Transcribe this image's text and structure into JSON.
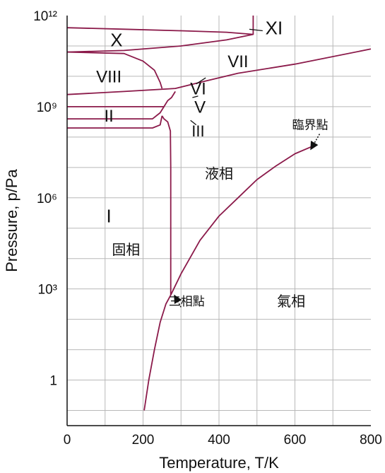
{
  "chart_data": {
    "type": "line",
    "title": "",
    "xlabel": "Temperature, T/K",
    "ylabel": "Pressure, p/Pa",
    "xlim": [
      0,
      800
    ],
    "ylim_log10": [
      -1.5,
      12
    ],
    "y_scale": "log",
    "grid": true,
    "x_ticks": [
      {
        "value": 0,
        "label": "0"
      },
      {
        "value": 200,
        "label": "200"
      },
      {
        "value": 400,
        "label": "400"
      },
      {
        "value": 600,
        "label": "600"
      },
      {
        "value": 800,
        "label": "800"
      }
    ],
    "y_ticks": [
      {
        "log10": 0,
        "label": "1"
      },
      {
        "log10": 3,
        "label": "10³"
      },
      {
        "log10": 6,
        "label": "10⁶"
      },
      {
        "log10": 9,
        "label": "10⁹"
      },
      {
        "log10": 12,
        "label": "10¹²"
      }
    ],
    "boundaries": [
      {
        "name": "vaporization",
        "points": [
          [
            273,
            2.8
          ],
          [
            300,
            3.5
          ],
          [
            350,
            4.6
          ],
          [
            400,
            5.4
          ],
          [
            450,
            6.0
          ],
          [
            500,
            6.6
          ],
          [
            550,
            7.05
          ],
          [
            600,
            7.45
          ],
          [
            647,
            7.7
          ]
        ]
      },
      {
        "name": "sublimation",
        "points": [
          [
            203,
            -1.0
          ],
          [
            215,
            0.0
          ],
          [
            230,
            1.0
          ],
          [
            245,
            1.9
          ],
          [
            260,
            2.5
          ],
          [
            273,
            2.8
          ]
        ]
      },
      {
        "name": "melting",
        "points": [
          [
            273,
            2.8
          ],
          [
            273,
            7.0
          ],
          [
            272,
            8.2
          ],
          [
            265,
            8.5
          ],
          [
            255,
            8.6
          ],
          [
            250,
            8.7
          ]
        ]
      },
      {
        "name": "I-III",
        "points": [
          [
            0,
            8.3
          ],
          [
            225,
            8.3
          ],
          [
            245,
            8.4
          ],
          [
            250,
            8.7
          ]
        ]
      },
      {
        "name": "II-III",
        "points": [
          [
            0,
            8.6
          ],
          [
            225,
            8.6
          ],
          [
            245,
            8.8
          ],
          [
            255,
            9.0
          ]
        ]
      },
      {
        "name": "II-V",
        "points": [
          [
            0,
            9.0
          ],
          [
            255,
            9.0
          ],
          [
            265,
            9.2
          ],
          [
            275,
            9.3
          ],
          [
            285,
            9.5
          ]
        ]
      },
      {
        "name": "VI-VII",
        "points": [
          [
            0,
            9.4
          ],
          [
            150,
            9.5
          ],
          [
            285,
            9.6
          ],
          [
            350,
            9.8
          ],
          [
            450,
            10.1
          ],
          [
            600,
            10.4
          ],
          [
            800,
            10.9
          ]
        ]
      },
      {
        "name": "VIII-VI",
        "points": [
          [
            0,
            10.8
          ],
          [
            150,
            10.75
          ],
          [
            200,
            10.5
          ],
          [
            230,
            10.2
          ],
          [
            245,
            9.8
          ],
          [
            250,
            9.6
          ]
        ]
      },
      {
        "name": "X-XI",
        "points": [
          [
            0,
            11.6
          ],
          [
            150,
            11.55
          ],
          [
            300,
            11.5
          ],
          [
            420,
            11.45
          ],
          [
            490,
            11.38
          ],
          [
            420,
            11.2
          ],
          [
            300,
            11.0
          ],
          [
            150,
            10.85
          ],
          [
            0,
            10.8
          ]
        ]
      },
      {
        "name": "XI upper",
        "points": [
          [
            490,
            11.38
          ],
          [
            490,
            12.0
          ]
        ]
      }
    ],
    "annotations": [
      {
        "text": "X",
        "x": 130,
        "y": 11.2
      },
      {
        "text": "XI",
        "x": 545,
        "y": 11.6
      },
      {
        "text": "VII",
        "x": 450,
        "y": 10.5
      },
      {
        "text": "VIII",
        "x": 110,
        "y": 10.0
      },
      {
        "text": "VI",
        "x": 345,
        "y": 9.6
      },
      {
        "text": "II",
        "x": 110,
        "y": 8.7
      },
      {
        "text": "V",
        "x": 350,
        "y": 9.0
      },
      {
        "text": "III",
        "x": 345,
        "y": 8.2
      },
      {
        "text": "I",
        "x": 110,
        "y": 5.4
      },
      {
        "text": "液相",
        "x": 400,
        "y": 6.8
      },
      {
        "text": "固相",
        "x": 155,
        "y": 4.3
      },
      {
        "text": "氣相",
        "x": 590,
        "y": 2.6
      },
      {
        "text": "三相點",
        "x": 315,
        "y": 2.6
      },
      {
        "text": "臨界點",
        "x": 640,
        "y": 8.4
      }
    ],
    "triple_point": {
      "x": 273,
      "y_log10": 2.8
    },
    "critical_point": {
      "x": 647,
      "y_log10": 7.7
    },
    "line_color": "#8b1a4a",
    "grid_color": "#b8b8b8"
  }
}
